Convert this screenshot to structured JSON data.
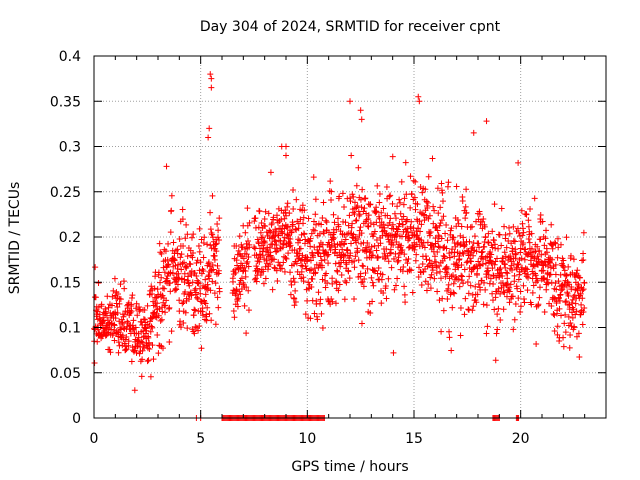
{
  "chart_data": {
    "type": "scatter",
    "title": "Day 304 of 2024, SRMTID for receiver cpnt",
    "xlabel": "GPS time / hours",
    "ylabel": "SRMTID / TECUs",
    "xlim": [
      0,
      24
    ],
    "ylim": [
      0,
      0.4
    ],
    "x_ticks": [
      0,
      5,
      10,
      15,
      20
    ],
    "x_tick_labels": [
      "0",
      "5",
      "10",
      "15",
      "20"
    ],
    "y_ticks": [
      0,
      0.05,
      0.1,
      0.15,
      0.2,
      0.25,
      0.3,
      0.35,
      0.4
    ],
    "y_tick_labels": [
      "0",
      "0.05",
      "0.1",
      "0.15",
      "0.2",
      "0.25",
      "0.3",
      "0.35",
      "0.4"
    ],
    "grid": true,
    "marker": "+",
    "series_color": "#ff0000",
    "series": [
      {
        "name": "SRMTID",
        "trend": [
          [
            0.0,
            0.1
          ],
          [
            0.5,
            0.105
          ],
          [
            1.0,
            0.11
          ],
          [
            1.5,
            0.105
          ],
          [
            2.0,
            0.09
          ],
          [
            2.5,
            0.085
          ],
          [
            3.0,
            0.14
          ],
          [
            3.5,
            0.165
          ],
          [
            4.0,
            0.16
          ],
          [
            4.5,
            0.15
          ],
          [
            5.0,
            0.14
          ],
          [
            5.5,
            0.17
          ],
          [
            6.5,
            0.14
          ],
          [
            7.0,
            0.17
          ],
          [
            8.0,
            0.19
          ],
          [
            9.0,
            0.2
          ],
          [
            10.0,
            0.17
          ],
          [
            11.0,
            0.18
          ],
          [
            12.0,
            0.2
          ],
          [
            13.0,
            0.195
          ],
          [
            14.0,
            0.2
          ],
          [
            15.0,
            0.2
          ],
          [
            16.0,
            0.195
          ],
          [
            17.0,
            0.18
          ],
          [
            18.0,
            0.175
          ],
          [
            19.0,
            0.16
          ],
          [
            20.0,
            0.18
          ],
          [
            21.0,
            0.17
          ],
          [
            22.0,
            0.14
          ],
          [
            23.0,
            0.13
          ]
        ],
        "spread": [
          [
            0.0,
            0.03
          ],
          [
            2.5,
            0.03
          ],
          [
            3.0,
            0.05
          ],
          [
            5.0,
            0.05
          ],
          [
            7.0,
            0.04
          ],
          [
            11.0,
            0.05
          ],
          [
            16.0,
            0.055
          ],
          [
            23.0,
            0.045
          ]
        ],
        "gaps": [
          [
            5.9,
            6.5
          ],
          [
            7.3,
            7.5
          ]
        ],
        "spikes": [
          [
            5.45,
            0.38
          ],
          [
            5.5,
            0.375
          ],
          [
            5.5,
            0.365
          ],
          [
            5.4,
            0.32
          ],
          [
            5.35,
            0.31
          ],
          [
            12.0,
            0.35
          ],
          [
            12.5,
            0.34
          ],
          [
            12.55,
            0.33
          ],
          [
            15.2,
            0.355
          ],
          [
            15.25,
            0.35
          ],
          [
            17.8,
            0.315
          ],
          [
            18.4,
            0.328
          ],
          [
            8.8,
            0.3
          ],
          [
            9.0,
            0.3
          ],
          [
            9.0,
            0.29
          ],
          [
            3.4,
            0.278
          ]
        ],
        "zero_clusters": [
          [
            4.8,
            4.8
          ],
          [
            5.0,
            5.0
          ],
          [
            6.0,
            10.8
          ],
          [
            18.7,
            19.0
          ],
          [
            19.8,
            19.9
          ]
        ],
        "point_count": 2200,
        "seed": 304
      }
    ]
  }
}
